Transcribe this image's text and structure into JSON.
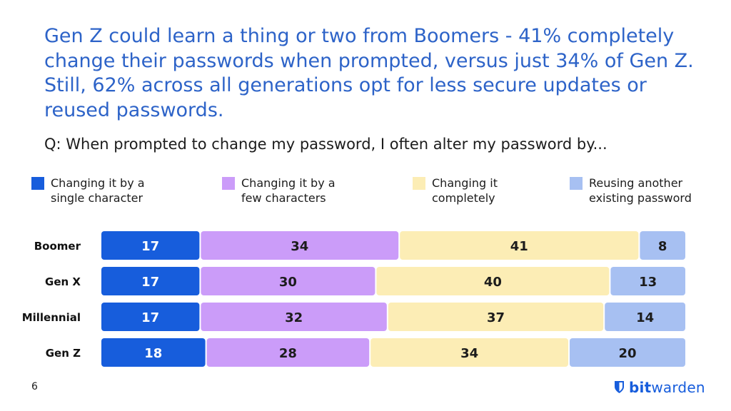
{
  "headline": "Gen Z could learn a thing or two from Boomers - 41% completely change their passwords when prompted, versus just 34% of Gen Z. Still, 62% across all generations opt for less secure updates or reused passwords.",
  "question": "Q: When prompted to change my password, I often alter my password by...",
  "page_number": "6",
  "brand": {
    "bold": "bit",
    "regular": "warden",
    "icon": "bitwarden-shield-icon"
  },
  "chart_data": {
    "type": "bar",
    "orientation": "horizontal",
    "stacked": true,
    "categories": [
      "Boomer",
      "Gen X",
      "Millennial",
      "Gen Z"
    ],
    "series": [
      {
        "name": "Changing it by a single character",
        "color": "#175ddc",
        "text_color": "#ffffff",
        "values": [
          17,
          17,
          17,
          18
        ]
      },
      {
        "name": "Changing it by a few characters",
        "color": "#cb9cf9",
        "text_color": "#1c1c1c",
        "values": [
          34,
          30,
          32,
          28
        ]
      },
      {
        "name": "Changing it completely",
        "color": "#fcedb5",
        "text_color": "#1c1c1c",
        "values": [
          41,
          40,
          37,
          34
        ]
      },
      {
        "name": "Reusing another existing password",
        "color": "#a7c0f2",
        "text_color": "#1c1c1c",
        "values": [
          8,
          13,
          14,
          20
        ]
      }
    ],
    "data_labels": true,
    "legend": "top",
    "grid": false,
    "xlim": [
      0,
      100
    ]
  }
}
